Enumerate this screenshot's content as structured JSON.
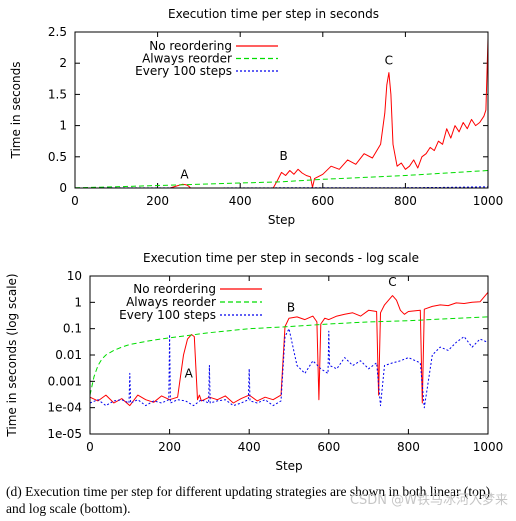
{
  "chart_data": [
    {
      "type": "line",
      "title": "Execution time per step in seconds",
      "xlabel": "Step",
      "ylabel": "Time in seconds",
      "xlim": [
        0,
        1000
      ],
      "ylim": [
        0,
        2.5
      ],
      "yscale": "linear",
      "x_ticks": [
        0,
        200,
        400,
        600,
        800,
        1000
      ],
      "y_ticks": [
        0,
        0.5,
        1,
        1.5,
        2,
        2.5
      ],
      "x_tick_labels": [
        "0",
        "200",
        "400",
        "600",
        "800",
        "1000"
      ],
      "y_tick_labels": [
        "0",
        "0.5",
        "1",
        "1.5",
        "2",
        "2.5"
      ],
      "legend_position": "top-left",
      "series": [
        {
          "name": "No reordering",
          "color": "#ff0000",
          "dash": "solid",
          "x": [
            0,
            100,
            200,
            230,
            250,
            260,
            270,
            275,
            280,
            300,
            400,
            470,
            480,
            490,
            500,
            510,
            520,
            530,
            540,
            550,
            560,
            570,
            575,
            580,
            600,
            620,
            640,
            660,
            680,
            700,
            720,
            740,
            750,
            755,
            760,
            765,
            770,
            780,
            790,
            800,
            810,
            820,
            830,
            840,
            850,
            860,
            870,
            880,
            890,
            900,
            910,
            920,
            930,
            940,
            950,
            960,
            970,
            980,
            990,
            995,
            1000
          ],
          "y": [
            0.0001,
            0.0002,
            0.0002,
            0.0003,
            0.04,
            0.06,
            0.05,
            0.03,
            0.0003,
            0.0003,
            0.0003,
            0.0003,
            0.0003,
            0.12,
            0.25,
            0.2,
            0.28,
            0.22,
            0.3,
            0.24,
            0.2,
            0.18,
            0.01,
            0.15,
            0.22,
            0.35,
            0.3,
            0.45,
            0.38,
            0.55,
            0.48,
            0.7,
            1.2,
            1.65,
            1.85,
            1.5,
            0.7,
            0.35,
            0.4,
            0.3,
            0.35,
            0.45,
            0.32,
            0.5,
            0.55,
            0.65,
            0.6,
            0.75,
            0.7,
            0.95,
            0.8,
            1.0,
            0.9,
            1.05,
            0.95,
            1.1,
            1.0,
            1.05,
            1.15,
            1.25,
            2.4
          ]
        },
        {
          "name": "Always reorder",
          "color": "#00dd00",
          "dash": "dashed",
          "x": [
            0,
            100,
            200,
            300,
            400,
            500,
            600,
            700,
            800,
            900,
            1000
          ],
          "y": [
            0.003,
            0.02,
            0.04,
            0.06,
            0.08,
            0.1,
            0.14,
            0.17,
            0.2,
            0.24,
            0.28
          ]
        },
        {
          "name": "Every 100 steps",
          "color": "#0000ee",
          "dash": "dotted",
          "x": [
            0,
            100,
            200,
            300,
            400,
            500,
            600,
            700,
            800,
            900,
            1000
          ],
          "y": [
            0.0001,
            0.002,
            0.002,
            0.0003,
            0.002,
            0.003,
            0.003,
            0.003,
            0.005,
            0.01,
            0.02
          ]
        }
      ],
      "annotations": [
        {
          "text": "A",
          "x": 265,
          "y": 0.15
        },
        {
          "text": "B",
          "x": 505,
          "y": 0.45
        },
        {
          "text": "C",
          "x": 760,
          "y": 1.98
        }
      ]
    },
    {
      "type": "line",
      "title": "Execution time per step in seconds - log scale",
      "xlabel": "Step",
      "ylabel": "Time in seconds (log scale)",
      "xlim": [
        0,
        1000
      ],
      "ylim": [
        1e-05,
        10
      ],
      "yscale": "log",
      "x_ticks": [
        0,
        200,
        400,
        600,
        800,
        1000
      ],
      "y_ticks": [
        1e-05,
        0.0001,
        0.001,
        0.01,
        0.1,
        1,
        10
      ],
      "x_tick_labels": [
        "0",
        "200",
        "400",
        "600",
        "800",
        "1000"
      ],
      "y_tick_labels": [
        "1e-05",
        "1e-04",
        "0.001",
        "0.01",
        "0.1",
        "1",
        "10"
      ],
      "legend_position": "top-left",
      "series": [
        {
          "name": "No reordering",
          "color": "#ff0000",
          "dash": "solid",
          "x": [
            0,
            20,
            40,
            60,
            80,
            100,
            120,
            140,
            160,
            180,
            200,
            220,
            235,
            245,
            255,
            262,
            270,
            275,
            280,
            300,
            320,
            340,
            360,
            380,
            400,
            420,
            440,
            460,
            480,
            490,
            500,
            520,
            540,
            560,
            570,
            575,
            580,
            590,
            600,
            620,
            640,
            660,
            680,
            700,
            720,
            725,
            730,
            740,
            760,
            770,
            780,
            790,
            800,
            830,
            835,
            840,
            860,
            880,
            900,
            920,
            940,
            960,
            980,
            1000
          ],
          "y": [
            0.00025,
            0.00018,
            0.0003,
            0.00015,
            0.00022,
            0.00012,
            0.0003,
            0.0002,
            0.00016,
            0.00028,
            0.0002,
            0.00025,
            0.01,
            0.04,
            0.06,
            0.05,
            0.0002,
            0.0003,
            0.00018,
            0.00025,
            0.0002,
            0.00028,
            0.00015,
            0.00022,
            0.0003,
            0.00018,
            0.00025,
            0.0002,
            0.0003,
            0.12,
            0.25,
            0.28,
            0.22,
            0.3,
            0.18,
            0.0002,
            0.15,
            0.25,
            0.22,
            0.3,
            0.35,
            0.4,
            0.3,
            0.5,
            0.45,
            0.0003,
            0.4,
            0.8,
            1.8,
            1.2,
            0.5,
            0.35,
            0.45,
            0.5,
            0.00015,
            0.55,
            0.7,
            0.8,
            0.75,
            0.95,
            0.9,
            1.0,
            1.05,
            2.4
          ]
        },
        {
          "name": "Always reorder",
          "color": "#00dd00",
          "dash": "dashed",
          "x": [
            0,
            10,
            20,
            30,
            40,
            60,
            80,
            100,
            150,
            200,
            300,
            400,
            500,
            600,
            700,
            800,
            900,
            1000
          ],
          "y": [
            0.0003,
            0.0015,
            0.004,
            0.007,
            0.01,
            0.015,
            0.02,
            0.025,
            0.035,
            0.045,
            0.07,
            0.1,
            0.12,
            0.15,
            0.18,
            0.2,
            0.24,
            0.28
          ]
        },
        {
          "name": "Every 100 steps",
          "color": "#0000ee",
          "dash": "dotted",
          "x": [
            0,
            20,
            40,
            60,
            80,
            98,
            100,
            102,
            120,
            140,
            160,
            180,
            198,
            200,
            202,
            220,
            240,
            260,
            280,
            298,
            300,
            302,
            320,
            340,
            360,
            380,
            398,
            400,
            402,
            420,
            440,
            460,
            480,
            490,
            500,
            520,
            540,
            560,
            580,
            598,
            600,
            602,
            620,
            640,
            660,
            680,
            700,
            720,
            730,
            740,
            760,
            780,
            800,
            830,
            840,
            860,
            880,
            900,
            920,
            940,
            960,
            980,
            1000
          ],
          "y": [
            0.00015,
            0.0002,
            0.00012,
            0.00018,
            0.0002,
            0.00015,
            0.002,
            0.00015,
            0.0002,
            0.00012,
            0.00018,
            0.00015,
            0.0002,
            0.06,
            0.00015,
            0.0002,
            0.00018,
            0.00012,
            0.0002,
            0.00015,
            0.004,
            0.00015,
            0.00018,
            0.0002,
            0.00012,
            0.00015,
            0.0002,
            0.003,
            0.00018,
            0.00015,
            0.0002,
            0.00012,
            0.00018,
            0.05,
            0.1,
            0.004,
            0.002,
            0.006,
            0.003,
            0.002,
            0.08,
            0.004,
            0.003,
            0.008,
            0.004,
            0.006,
            0.003,
            0.005,
            0.00012,
            0.004,
            0.005,
            0.006,
            0.008,
            0.005,
            0.0001,
            0.01,
            0.02,
            0.015,
            0.03,
            0.05,
            0.02,
            0.04,
            0.03
          ]
        }
      ],
      "annotations": [
        {
          "text": "A",
          "x": 248,
          "y": 0.0014
        },
        {
          "text": "B",
          "x": 505,
          "y": 0.45
        },
        {
          "text": "C",
          "x": 760,
          "y": 4.2
        }
      ]
    }
  ],
  "caption": "(d) Execution time per step for different updating strategies are shown in both linear (top) and log scale (bottom).",
  "watermark": "CSDN @W铁马冰河入梦来"
}
